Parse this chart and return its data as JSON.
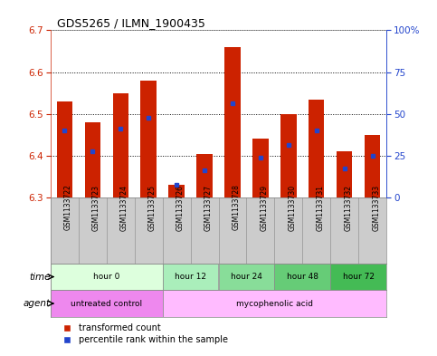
{
  "title": "GDS5265 / ILMN_1900435",
  "samples": [
    "GSM1133722",
    "GSM1133723",
    "GSM1133724",
    "GSM1133725",
    "GSM1133726",
    "GSM1133727",
    "GSM1133728",
    "GSM1133729",
    "GSM1133730",
    "GSM1133731",
    "GSM1133732",
    "GSM1133733"
  ],
  "bar_bottoms": [
    6.3,
    6.3,
    6.3,
    6.3,
    6.3,
    6.3,
    6.3,
    6.3,
    6.3,
    6.3,
    6.3,
    6.3
  ],
  "bar_tops": [
    6.53,
    6.48,
    6.55,
    6.58,
    6.33,
    6.405,
    6.66,
    6.44,
    6.5,
    6.535,
    6.41,
    6.45
  ],
  "percentile_values": [
    6.46,
    6.41,
    6.465,
    6.49,
    6.33,
    6.365,
    6.525,
    6.395,
    6.425,
    6.46,
    6.37,
    6.4
  ],
  "ylim_left": [
    6.3,
    6.7
  ],
  "ylim_right": [
    0,
    100
  ],
  "yticks_left": [
    6.3,
    6.4,
    6.5,
    6.6,
    6.7
  ],
  "yticks_right": [
    0,
    25,
    50,
    75,
    100
  ],
  "bar_color": "#cc2200",
  "percentile_color": "#2244cc",
  "time_groups": [
    {
      "label": "hour 0",
      "start": 0,
      "end": 4,
      "color": "#ddffdd"
    },
    {
      "label": "hour 12",
      "start": 4,
      "end": 6,
      "color": "#aaeebb"
    },
    {
      "label": "hour 24",
      "start": 6,
      "end": 8,
      "color": "#88dd99"
    },
    {
      "label": "hour 48",
      "start": 8,
      "end": 10,
      "color": "#66cc77"
    },
    {
      "label": "hour 72",
      "start": 10,
      "end": 12,
      "color": "#44bb55"
    }
  ],
  "agent_groups": [
    {
      "label": "untreated control",
      "start": 0,
      "end": 4,
      "color": "#ee88ee"
    },
    {
      "label": "mycophenolic acid",
      "start": 4,
      "end": 12,
      "color": "#ffbbff"
    }
  ],
  "legend_red": "transformed count",
  "legend_blue": "percentile rank within the sample",
  "bar_width": 0.55
}
